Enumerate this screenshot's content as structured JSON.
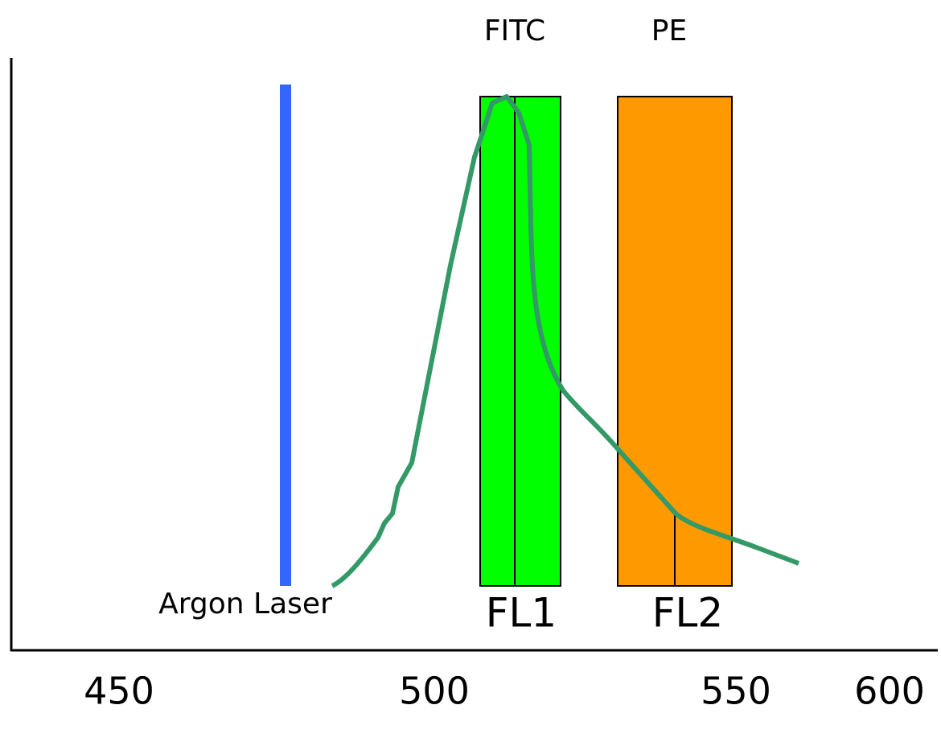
{
  "labels": {
    "fitc": "FITC",
    "pe": "PE",
    "laser": "Argon Laser",
    "fl1": "FL1",
    "fl2": "FL2"
  },
  "axis": {
    "ticks": [
      "450",
      "500",
      "550",
      "600"
    ]
  }
}
